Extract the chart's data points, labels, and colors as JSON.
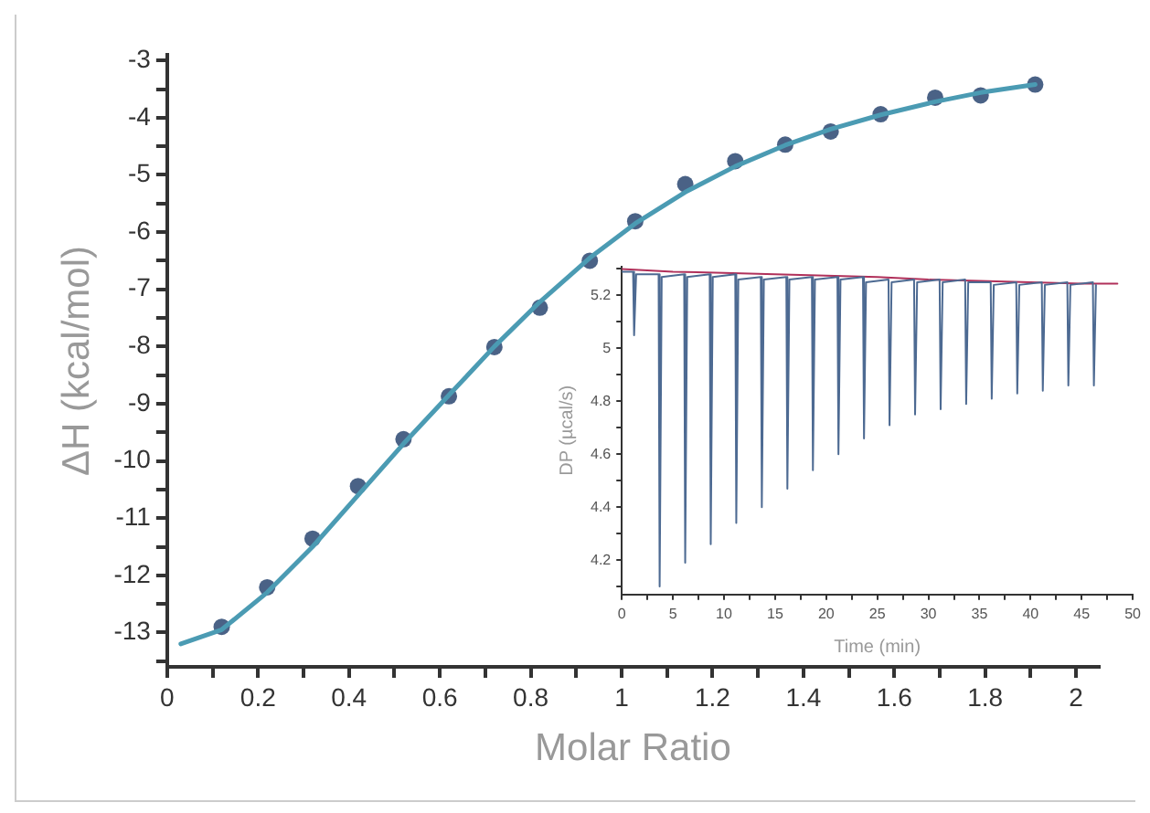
{
  "chart_data": [
    {
      "type": "scatter",
      "xlabel": "Molar Ratio",
      "ylabel": "ΔH (kcal/mol)",
      "xlim": [
        0,
        2.05
      ],
      "ylim": [
        -13.6,
        -2.9
      ],
      "xticks": [
        0,
        {
          "value": 0.1,
          "label": null
        },
        0.2,
        {
          "value": 0.3,
          "label": null
        },
        0.4,
        {
          "value": 0.5,
          "label": null
        },
        0.6,
        {
          "value": 0.7,
          "label": null
        },
        0.8,
        {
          "value": 0.9,
          "label": null
        },
        1,
        {
          "value": 1.1,
          "label": null
        },
        1.2,
        {
          "value": 1.3,
          "label": null
        },
        1.4,
        {
          "value": 1.5,
          "label": null
        },
        1.6,
        {
          "value": 1.7,
          "label": null
        },
        1.8,
        {
          "value": 1.9,
          "label": null
        },
        2
      ],
      "yticks": [
        {
          "value": -13.5,
          "label": null
        },
        -13,
        {
          "value": -12.5,
          "label": null
        },
        -12,
        {
          "value": -11.5,
          "label": null
        },
        -11,
        {
          "value": -10.5,
          "label": null
        },
        -10,
        {
          "value": -9.5,
          "label": null
        },
        -9,
        {
          "value": -8.5,
          "label": null
        },
        -8,
        {
          "value": -7.5,
          "label": null
        },
        -7,
        {
          "value": -6.5,
          "label": null
        },
        -6,
        {
          "value": -5.5,
          "label": null
        },
        -5,
        {
          "value": -4.5,
          "label": null
        },
        -4,
        {
          "value": -3.5,
          "label": null
        },
        -3
      ],
      "grid": false,
      "legend": false,
      "series": [
        {
          "type": "line",
          "marker": "none",
          "color": "#4b9bb3",
          "x": [
            0.03,
            0.12,
            0.22,
            0.32,
            0.42,
            0.52,
            0.62,
            0.72,
            0.82,
            0.93,
            1.03,
            1.14,
            1.25,
            1.36,
            1.46,
            1.57,
            1.69,
            1.79,
            1.91
          ],
          "values": [
            -13.2,
            -12.95,
            -12.3,
            -11.5,
            -10.6,
            -9.7,
            -8.85,
            -8.0,
            -7.22,
            -6.45,
            -5.85,
            -5.3,
            -4.85,
            -4.48,
            -4.2,
            -3.95,
            -3.72,
            -3.56,
            -3.42
          ]
        },
        {
          "marker": "circle",
          "color": "#4a6286",
          "x": [
            0.12,
            0.22,
            0.32,
            0.42,
            0.52,
            0.62,
            0.72,
            0.82,
            0.93,
            1.03,
            1.14,
            1.25,
            1.36,
            1.46,
            1.57,
            1.69,
            1.79,
            1.91
          ],
          "values": [
            -12.9,
            -12.21,
            -11.36,
            -10.44,
            -9.62,
            -8.87,
            -8.01,
            -7.32,
            -6.5,
            -5.81,
            -5.16,
            -4.76,
            -4.47,
            -4.24,
            -3.94,
            -3.65,
            -3.61,
            -3.42
          ]
        }
      ]
    },
    {
      "type": "line",
      "xlabel": "Time (min)",
      "ylabel": "DP (µcal/s)",
      "xlim": [
        0,
        50
      ],
      "ylim": [
        4.07,
        5.31
      ],
      "xticks": [
        0,
        {
          "value": 2.5,
          "label": null
        },
        5,
        {
          "value": 7.5,
          "label": null
        },
        10,
        {
          "value": 12.5,
          "label": null
        },
        15,
        {
          "value": 17.5,
          "label": null
        },
        20,
        {
          "value": 22.5,
          "label": null
        },
        25,
        {
          "value": 27.5,
          "label": null
        },
        30,
        {
          "value": 32.5,
          "label": null
        },
        35,
        {
          "value": 37.5,
          "label": null
        },
        40,
        {
          "value": 42.5,
          "label": null
        },
        45,
        {
          "value": 47.5,
          "label": null
        },
        50
      ],
      "yticks": [
        {
          "value": 4.1,
          "label": null
        },
        4.2,
        {
          "value": 4.3,
          "label": null
        },
        4.4,
        {
          "value": 4.5,
          "label": null
        },
        4.6,
        {
          "value": 4.7,
          "label": null
        },
        4.8,
        {
          "value": 4.9,
          "label": null
        },
        5,
        {
          "value": 5.1,
          "label": null
        },
        5.2,
        {
          "value": 5.3,
          "label": null
        }
      ],
      "grid": false,
      "legend": false,
      "series": [
        {
          "color": "#4d6a92",
          "x": [
            0,
            1.1,
            1.2,
            1.4,
            3.6,
            3.7,
            3.9,
            6.1,
            6.2,
            6.4,
            8.6,
            8.7,
            8.9,
            11.1,
            11.2,
            11.4,
            13.6,
            13.7,
            13.9,
            16.1,
            16.2,
            16.4,
            18.6,
            18.7,
            18.9,
            21.1,
            21.2,
            21.4,
            23.6,
            23.7,
            23.9,
            26.1,
            26.2,
            26.4,
            28.6,
            28.7,
            28.9,
            31.1,
            31.2,
            31.4,
            33.6,
            33.7,
            33.9,
            36.1,
            36.2,
            36.4,
            38.6,
            38.7,
            38.9,
            41.1,
            41.2,
            41.4,
            43.6,
            43.7,
            43.9,
            46.1,
            46.2,
            46.4
          ],
          "values": [
            5.29,
            5.29,
            5.05,
            5.28,
            5.28,
            4.1,
            5.27,
            5.28,
            4.19,
            5.27,
            5.28,
            4.26,
            5.27,
            5.28,
            4.34,
            5.26,
            5.27,
            4.4,
            5.26,
            5.27,
            4.47,
            5.26,
            5.27,
            4.54,
            5.26,
            5.27,
            4.6,
            5.26,
            5.27,
            4.66,
            5.25,
            5.26,
            4.71,
            5.25,
            5.26,
            4.75,
            5.25,
            5.26,
            4.77,
            5.25,
            5.26,
            4.79,
            5.25,
            5.25,
            4.81,
            5.24,
            5.25,
            4.83,
            5.24,
            5.25,
            4.84,
            5.24,
            5.25,
            4.86,
            5.24,
            5.25,
            4.86,
            5.24
          ]
        },
        {
          "color": "#b0305a",
          "x": [
            0,
            5,
            10,
            15,
            20,
            25,
            30,
            35,
            40,
            45,
            48.5
          ],
          "values": [
            5.3,
            5.29,
            5.285,
            5.28,
            5.275,
            5.27,
            5.26,
            5.255,
            5.25,
            5.245,
            5.245
          ]
        }
      ]
    }
  ]
}
